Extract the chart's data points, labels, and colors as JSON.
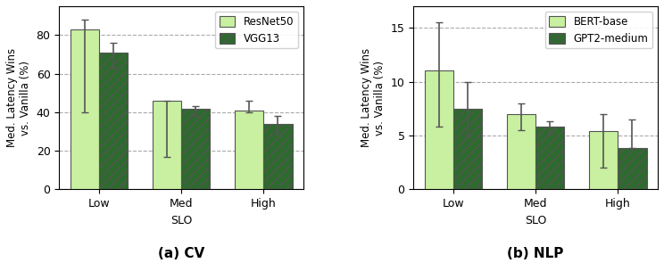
{
  "cv": {
    "categories": [
      "Low",
      "Med",
      "High"
    ],
    "resnet50": {
      "values": [
        83,
        46,
        41
      ],
      "yerr_lo": [
        43,
        29,
        1
      ],
      "yerr_hi": [
        5,
        0,
        5
      ]
    },
    "vgg13": {
      "values": [
        71,
        42,
        34
      ],
      "yerr_lo": [
        8,
        4,
        5
      ],
      "yerr_hi": [
        5,
        1,
        4
      ]
    },
    "ylabel": "Med. Latency Wins\nvs. Vanilla (%)",
    "xlabel": "SLO",
    "ylim": [
      0,
      95
    ],
    "yticks": [
      0,
      20,
      40,
      60,
      80
    ],
    "legend1": "ResNet50",
    "legend2": "VGG13",
    "subtitle": "(a) CV"
  },
  "nlp": {
    "categories": [
      "Low",
      "Med",
      "High"
    ],
    "bert": {
      "values": [
        11,
        7,
        5.4
      ],
      "yerr_lo": [
        5.2,
        1.5,
        3.4
      ],
      "yerr_hi": [
        4.5,
        1.0,
        1.6
      ]
    },
    "gpt2": {
      "values": [
        7.5,
        5.8,
        3.8
      ],
      "yerr_lo": [
        2.5,
        0.6,
        0.0
      ],
      "yerr_hi": [
        2.5,
        0.5,
        2.7
      ]
    },
    "ylabel": "Med. Latency Wins\nvs. Vanilla (%)",
    "xlabel": "SLO",
    "ylim": [
      0,
      17
    ],
    "yticks": [
      0,
      5,
      10,
      15
    ],
    "legend1": "BERT-base",
    "legend2": "GPT2-medium",
    "subtitle": "(b) NLP"
  },
  "color_light": "#c8f0a0",
  "color_dark": "#2d6a2d",
  "hatch": "///",
  "bar_width": 0.35,
  "figsize": [
    7.44,
    2.95
  ],
  "dpi": 100
}
